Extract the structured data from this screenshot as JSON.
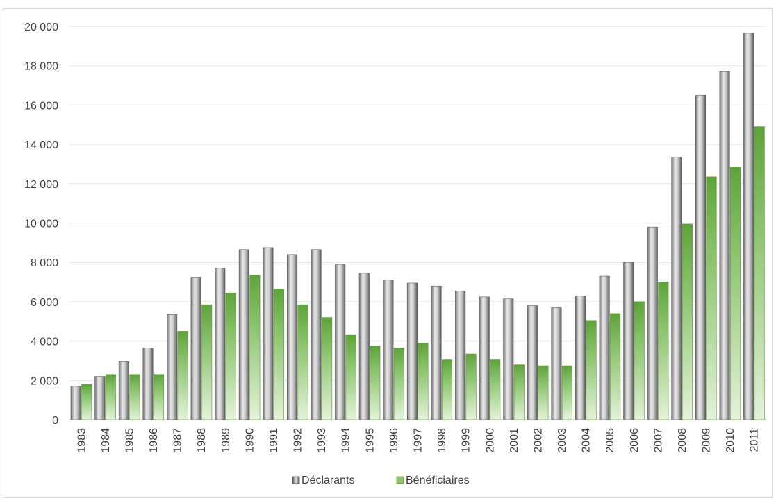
{
  "chart_data": {
    "type": "bar",
    "title": "",
    "xlabel": "",
    "ylabel": "",
    "ylim": [
      0,
      20000
    ],
    "yticks": [
      0,
      2000,
      4000,
      6000,
      8000,
      10000,
      12000,
      14000,
      16000,
      18000,
      20000
    ],
    "ytick_labels": [
      "0",
      "2 000",
      "4 000",
      "6 000",
      "8 000",
      "10 000",
      "12 000",
      "14 000",
      "16 000",
      "18 000",
      "20 000"
    ],
    "grid": true,
    "legend_position": "bottom",
    "categories": [
      "1983",
      "1984",
      "1985",
      "1986",
      "1987",
      "1988",
      "1989",
      "1990",
      "1991",
      "1992",
      "1993",
      "1994",
      "1995",
      "1996",
      "1997",
      "1998",
      "1999",
      "2000",
      "2001",
      "2002",
      "2003",
      "2004",
      "2005",
      "2006",
      "2007",
      "2008",
      "2009",
      "2010",
      "2011"
    ],
    "series": [
      {
        "name": "Déclarants",
        "color": "#9a9a9a",
        "values": [
          1700,
          2200,
          2950,
          3650,
          5350,
          7250,
          7700,
          8650,
          8750,
          8400,
          8650,
          7900,
          7450,
          7100,
          6950,
          6800,
          6550,
          6250,
          6150,
          5800,
          5700,
          6300,
          7300,
          8000,
          9800,
          13350,
          16500,
          17700,
          19650
        ]
      },
      {
        "name": "Bénéficiaires",
        "color": "#70ad47",
        "values": [
          1800,
          2300,
          2300,
          2300,
          4500,
          5850,
          6450,
          7350,
          6650,
          5850,
          5200,
          4300,
          3750,
          3650,
          3900,
          3050,
          3350,
          3050,
          2800,
          2750,
          2750,
          5050,
          5400,
          6000,
          7000,
          9950,
          12350,
          12850,
          14900
        ]
      }
    ]
  }
}
